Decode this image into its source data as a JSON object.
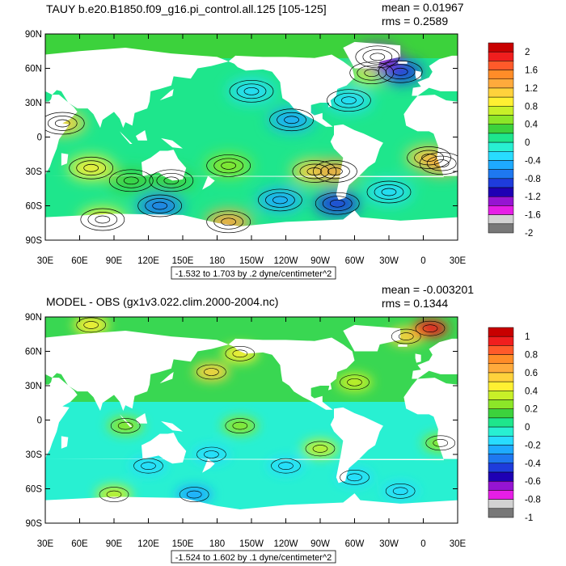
{
  "panels": [
    {
      "title": "TAUY b.e20.B1850.f09_g16.pi_control.all.125 [105-125]",
      "stats_mean": "mean = 0.01967",
      "stats_rms": "rms = 0.2589",
      "range_label": "-1.532 to 1.703 by .2 dyne/centimeter^2"
    },
    {
      "title": "MODEL - OBS (gx1v3.022.clim.2000-2004.nc)",
      "stats_mean": "mean = -0.003201",
      "stats_rms": "rms = 0.1344",
      "range_label": "-1.524 to 1.602 by .1 dyne/centimeter^2"
    }
  ],
  "chart_data": [
    {
      "type": "heatmap",
      "title": "TAUY b.e20.B1850.f09_g16.pi_control.all.125 [105-125]",
      "x_ticks": [
        "30E",
        "60E",
        "90E",
        "120E",
        "150E",
        "180",
        "150W",
        "120W",
        "90W",
        "60W",
        "30W",
        "0",
        "30E"
      ],
      "y_ticks": [
        "90N",
        "60N",
        "30N",
        "0",
        "30S",
        "60S",
        "90S"
      ],
      "xlim": [
        30,
        390
      ],
      "ylim": [
        -90,
        90
      ],
      "stats": {
        "mean": 0.01967,
        "rms": 0.2589,
        "min": -1.532,
        "max": 1.703,
        "interval": 0.2,
        "units": "dyne/centimeter^2"
      },
      "colorbar": {
        "labels": [
          "2",
          "1.6",
          "1.2",
          "0.8",
          "0.4",
          "0",
          "-0.4",
          "-0.8",
          "-1.2",
          "-1.6",
          "-2"
        ],
        "levels": [
          2,
          1.8,
          1.6,
          1.4,
          1.2,
          1.0,
          0.8,
          0.6,
          0.4,
          0.2,
          0,
          -0.2,
          -0.4,
          -0.6,
          -0.8,
          -1.0,
          -1.2,
          -1.4,
          -1.6,
          -1.8,
          -2
        ],
        "colors": [
          "#c80000",
          "#f01e1e",
          "#ff5a2a",
          "#ff8c28",
          "#ffaa3c",
          "#ffd23c",
          "#fff032",
          "#c8f028",
          "#8ce628",
          "#3cd23c",
          "#1ee68c",
          "#28f0d2",
          "#28dcff",
          "#1eaaff",
          "#1e78f0",
          "#1e3cdc",
          "#1e00b4",
          "#9614d2",
          "#e61ee6",
          "#d2d2d2",
          "#787878"
        ]
      },
      "features": [
        {
          "lon": 70,
          "lat": -27,
          "value": 0.9
        },
        {
          "lon": 105,
          "lat": -38,
          "value": 0.3
        },
        {
          "lon": 140,
          "lat": -38,
          "value": 0.2
        },
        {
          "lon": 190,
          "lat": -25,
          "value": 0.5
        },
        {
          "lon": 265,
          "lat": -30,
          "value": 1.0
        },
        {
          "lon": 283,
          "lat": -30,
          "value": 1.3
        },
        {
          "lon": 365,
          "lat": -18,
          "value": 1.0
        },
        {
          "lon": 376,
          "lat": -23,
          "value": 1.3
        },
        {
          "lon": 45,
          "lat": 12,
          "value": 1.0
        },
        {
          "lon": 210,
          "lat": 40,
          "value": -0.4
        },
        {
          "lon": 245,
          "lat": 15,
          "value": -0.5
        },
        {
          "lon": 295,
          "lat": 32,
          "value": -0.4
        },
        {
          "lon": 315,
          "lat": 56,
          "value": 0.6
        },
        {
          "lon": 340,
          "lat": 57,
          "value": -1.0
        },
        {
          "lon": 320,
          "lat": 70,
          "value": -1.3
        },
        {
          "lon": 130,
          "lat": -60,
          "value": -0.7
        },
        {
          "lon": 235,
          "lat": -55,
          "value": -0.5
        },
        {
          "lon": 285,
          "lat": -58,
          "value": -0.9
        },
        {
          "lon": 190,
          "lat": -74,
          "value": 1.3
        },
        {
          "lon": 80,
          "lat": -72,
          "value": 0.9
        },
        {
          "lon": 330,
          "lat": -48,
          "value": -0.4
        }
      ]
    },
    {
      "type": "heatmap",
      "title": "MODEL - OBS (gx1v3.022.clim.2000-2004.nc)",
      "x_ticks": [
        "30E",
        "60E",
        "90E",
        "120E",
        "150E",
        "180",
        "150W",
        "120W",
        "90W",
        "60W",
        "30W",
        "0",
        "30E"
      ],
      "y_ticks": [
        "90N",
        "60N",
        "30N",
        "0",
        "30S",
        "60S",
        "90S"
      ],
      "xlim": [
        30,
        390
      ],
      "ylim": [
        -90,
        90
      ],
      "stats": {
        "mean": -0.003201,
        "rms": 0.1344,
        "min": -1.524,
        "max": 1.602,
        "interval": 0.1,
        "units": "dyne/centimeter^2"
      },
      "colorbar": {
        "labels": [
          "1",
          "0.8",
          "0.6",
          "0.4",
          "0.2",
          "0",
          "-0.2",
          "-0.4",
          "-0.6",
          "-0.8",
          "-1"
        ],
        "levels": [
          1,
          0.9,
          0.8,
          0.7,
          0.6,
          0.5,
          0.4,
          0.3,
          0.2,
          0.1,
          0,
          -0.1,
          -0.2,
          -0.3,
          -0.4,
          -0.5,
          -0.6,
          -0.7,
          -0.8,
          -0.9,
          -1
        ],
        "colors": [
          "#c80000",
          "#f01e1e",
          "#ff5a2a",
          "#ff8c28",
          "#ffaa3c",
          "#ffd23c",
          "#fff032",
          "#c8f028",
          "#8ce628",
          "#3cd23c",
          "#1ee68c",
          "#28f0d2",
          "#28dcff",
          "#1eaaff",
          "#1e78f0",
          "#1e3cdc",
          "#1e00b4",
          "#9614d2",
          "#e61ee6",
          "#d2d2d2",
          "#787878"
        ]
      },
      "features": [
        {
          "lon": 175,
          "lat": 42,
          "value": 0.5
        },
        {
          "lon": 200,
          "lat": 58,
          "value": 0.4
        },
        {
          "lon": 300,
          "lat": 33,
          "value": 0.3
        },
        {
          "lon": 345,
          "lat": 73,
          "value": 0.5
        },
        {
          "lon": 366,
          "lat": 80,
          "value": 0.9
        },
        {
          "lon": 70,
          "lat": 83,
          "value": 0.4
        },
        {
          "lon": 100,
          "lat": -5,
          "value": 0.2
        },
        {
          "lon": 200,
          "lat": -5,
          "value": 0.2
        },
        {
          "lon": 270,
          "lat": -25,
          "value": 0.3
        },
        {
          "lon": 375,
          "lat": -20,
          "value": 0.25
        },
        {
          "lon": 120,
          "lat": -40,
          "value": -0.15
        },
        {
          "lon": 175,
          "lat": -30,
          "value": -0.12
        },
        {
          "lon": 240,
          "lat": -40,
          "value": -0.12
        },
        {
          "lon": 300,
          "lat": -50,
          "value": -0.15
        },
        {
          "lon": 90,
          "lat": -65,
          "value": 0.3
        },
        {
          "lon": 160,
          "lat": -65,
          "value": -0.3
        },
        {
          "lon": 340,
          "lat": -62,
          "value": -0.2
        }
      ]
    }
  ]
}
